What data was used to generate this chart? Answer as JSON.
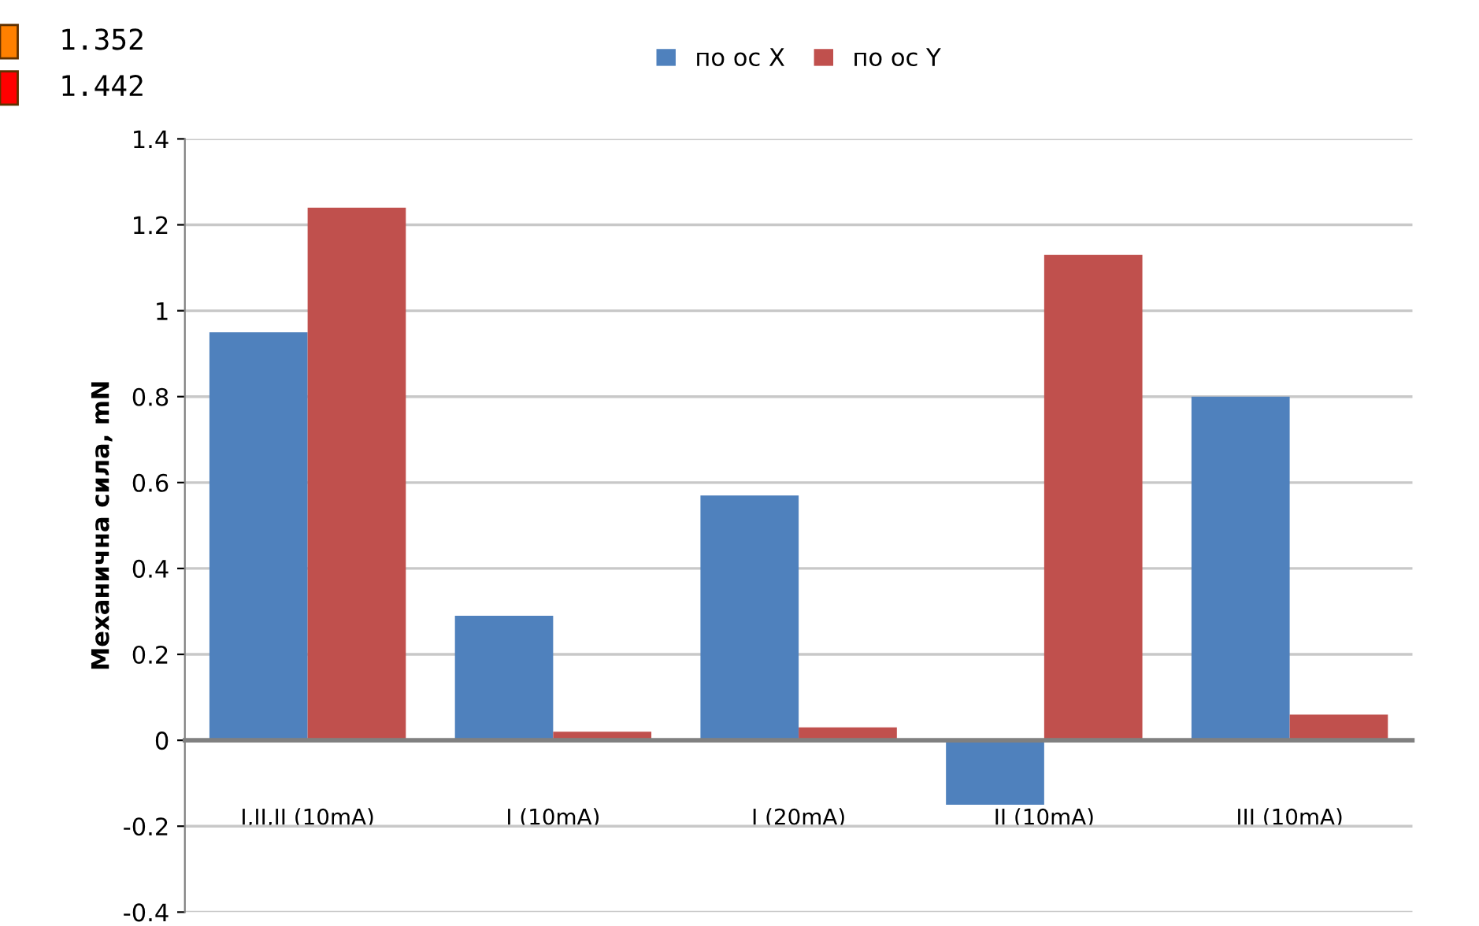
{
  "chart_data": {
    "type": "bar",
    "ylabel": "Механична сила, mN",
    "categories": [
      "I,II,II (10mA)",
      "I (10mA)",
      "I (20mA)",
      "II (10mA)",
      "III (10mA)"
    ],
    "series": [
      {
        "name": "по ос X",
        "color": "#4f81bd",
        "values": [
          0.95,
          0.29,
          0.57,
          -0.15,
          0.8
        ]
      },
      {
        "name": "по ос Y",
        "color": "#c0504d",
        "values": [
          1.24,
          0.02,
          0.03,
          1.13,
          0.06
        ]
      }
    ],
    "ylim": [
      -0.4,
      1.4
    ],
    "yticks": [
      -0.4,
      -0.2,
      0,
      0.2,
      0.4,
      0.6,
      0.8,
      1,
      1.2,
      1.4
    ],
    "grid": "y",
    "legend": "top",
    "annotations": [
      "1.352",
      "1.442"
    ]
  }
}
